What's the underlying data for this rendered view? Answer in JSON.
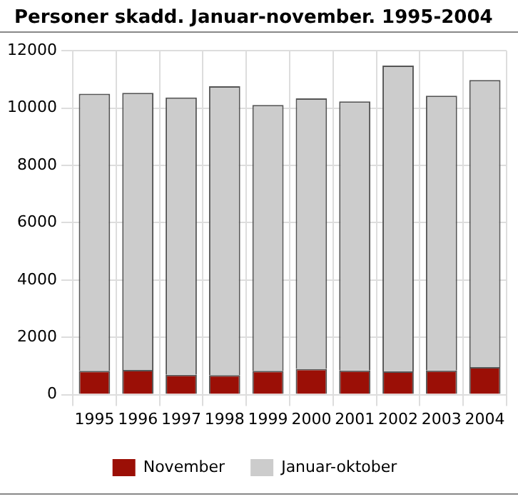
{
  "chart_data": {
    "type": "bar",
    "title": "Personer skadd. Januar-november. 1995-2004",
    "categories": [
      "1995",
      "1996",
      "1997",
      "1998",
      "1999",
      "2000",
      "2001",
      "2002",
      "2003",
      "2004"
    ],
    "series": [
      {
        "name": "November",
        "color": "#9b0f06",
        "values": [
          830,
          860,
          690,
          680,
          830,
          900,
          840,
          810,
          840,
          960
        ]
      },
      {
        "name": "Januar-oktober",
        "color": "#cccccc",
        "values": [
          9670,
          9670,
          9680,
          10080,
          9280,
          9440,
          9390,
          10670,
          9590,
          10020
        ]
      }
    ],
    "stacked": true,
    "ylim": [
      0,
      12000
    ],
    "yticks": [
      0,
      2000,
      4000,
      6000,
      8000,
      10000,
      12000
    ],
    "grid": true,
    "legend": "bottom"
  }
}
